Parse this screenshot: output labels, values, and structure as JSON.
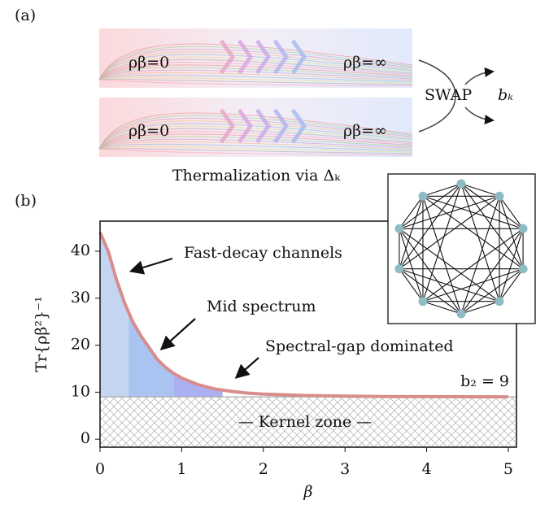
{
  "panel_a": {
    "label": "(a)",
    "rho_hot_top": "ρβ=0",
    "rho_cold_top": "ρβ=∞",
    "rho_hot_bottom": "ρβ=0",
    "rho_cold_bottom": "ρβ=∞",
    "swap": "SWAP",
    "output": "bₖ",
    "caption": "Thermalization via Δₖ"
  },
  "chart_data": {
    "type": "line",
    "panel_label": "(b)",
    "x_label": "β",
    "y_label": "Tr{ρβ²}⁻¹",
    "x": [
      0,
      0.1,
      0.2,
      0.3,
      0.4,
      0.5,
      0.6,
      0.7,
      0.8,
      0.9,
      1,
      1.2,
      1.4,
      1.6,
      1.8,
      2,
      2.5,
      3,
      3.5,
      4,
      4.5,
      5
    ],
    "values": [
      44,
      40,
      34,
      29,
      25,
      22,
      19.5,
      17,
      15.3,
      14,
      13,
      11.6,
      10.7,
      10.2,
      9.8,
      9.6,
      9.3,
      9.15,
      9.08,
      9.04,
      9.02,
      9.01
    ],
    "color": "#d98c8c",
    "regions": [
      {
        "from": 0,
        "to": 0.35,
        "color": "#c3d5f0"
      },
      {
        "from": 0.35,
        "to": 0.9,
        "color": "#a9c4f0"
      },
      {
        "from": 0.9,
        "to": 1.5,
        "color": "#aab0f2"
      }
    ],
    "kernel_level": 9,
    "annotations": [
      "Fast-decay channels",
      "Mid spectrum",
      "Spectral-gap dominated",
      "b₂ = 9",
      "— Kernel zone —"
    ],
    "xlim": [
      0,
      5.1
    ],
    "ylim": [
      -1.7,
      46.4
    ],
    "xticks": [
      0,
      1,
      2,
      3,
      4,
      5
    ],
    "yticks": [
      0,
      10,
      20,
      30,
      40
    ]
  }
}
